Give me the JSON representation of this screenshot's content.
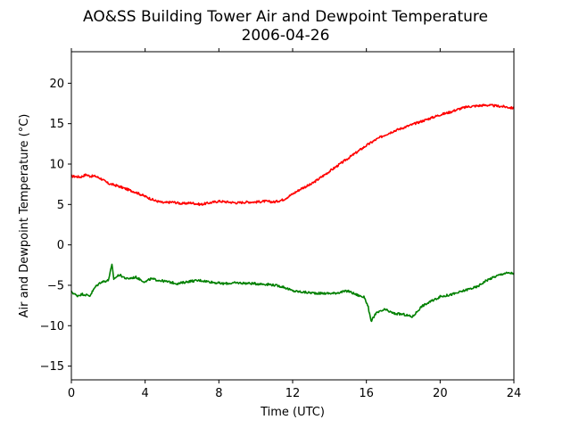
{
  "chart_data": {
    "type": "line",
    "title": "AO&SS Building Tower Air and Dewpoint Temperature",
    "subtitle": "2006-04-26",
    "xlabel": "Time (UTC)",
    "ylabel": "Air and Dewpoint Temperature (°C)",
    "xlim": [
      0,
      24
    ],
    "ylim": [
      -16.7,
      23.9
    ],
    "xticks": [
      0,
      4,
      8,
      12,
      16,
      20,
      24
    ],
    "yticks": [
      -15,
      -10,
      -5,
      0,
      5,
      10,
      15,
      20
    ],
    "grid": false,
    "series": [
      {
        "color": "#ff0000",
        "x": [
          0,
          0.5,
          0.8,
          1.0,
          1.3,
          1.6,
          2.0,
          2.5,
          3.0,
          3.5,
          4.0,
          4.5,
          5.0,
          5.5,
          6.0,
          6.5,
          7.0,
          7.5,
          8.0,
          8.5,
          9.0,
          9.5,
          10.0,
          10.5,
          11.0,
          11.5,
          12.0,
          12.5,
          13.0,
          13.5,
          14.0,
          14.5,
          15.0,
          15.5,
          16.0,
          16.5,
          17.0,
          17.5,
          18.0,
          18.5,
          19.0,
          19.5,
          20.0,
          20.5,
          21.0,
          21.5,
          22.0,
          22.5,
          23.0,
          23.5,
          24.0
        ],
        "values": [
          8.5,
          8.4,
          8.7,
          8.5,
          8.5,
          8.2,
          7.6,
          7.3,
          6.9,
          6.5,
          6.0,
          5.5,
          5.2,
          5.3,
          5.1,
          5.2,
          5.0,
          5.2,
          5.4,
          5.3,
          5.2,
          5.3,
          5.3,
          5.4,
          5.3,
          5.6,
          6.3,
          7.0,
          7.5,
          8.3,
          9.1,
          9.9,
          10.7,
          11.5,
          12.3,
          13.0,
          13.6,
          14.1,
          14.5,
          14.9,
          15.3,
          15.7,
          16.1,
          16.4,
          16.8,
          17.1,
          17.2,
          17.3,
          17.2,
          17.1,
          16.9
        ]
      },
      {
        "color": "#008000",
        "x": [
          0,
          0.3,
          0.6,
          1.0,
          1.3,
          1.6,
          2.0,
          2.2,
          2.3,
          2.6,
          3.0,
          3.5,
          4.0,
          4.3,
          4.8,
          5.3,
          5.8,
          6.4,
          7.0,
          7.6,
          8.2,
          9.0,
          10.0,
          10.8,
          11.5,
          12.0,
          12.8,
          13.5,
          14.2,
          15.0,
          15.5,
          15.9,
          16.1,
          16.25,
          16.5,
          17.0,
          17.5,
          18.0,
          18.5,
          19.0,
          19.5,
          20.0,
          20.5,
          21.0,
          21.5,
          22.0,
          22.5,
          23.0,
          23.5,
          24.0
        ],
        "values": [
          -5.8,
          -6.3,
          -6.1,
          -6.3,
          -5.2,
          -4.6,
          -4.4,
          -2.5,
          -4.2,
          -3.7,
          -4.2,
          -4.0,
          -4.6,
          -4.2,
          -4.4,
          -4.6,
          -4.8,
          -4.5,
          -4.4,
          -4.6,
          -4.8,
          -4.7,
          -4.8,
          -4.9,
          -5.2,
          -5.7,
          -5.9,
          -6.0,
          -6.0,
          -5.7,
          -6.2,
          -6.5,
          -7.7,
          -9.5,
          -8.5,
          -8.0,
          -8.5,
          -8.6,
          -8.9,
          -7.6,
          -7.0,
          -6.4,
          -6.2,
          -5.9,
          -5.5,
          -5.2,
          -4.4,
          -3.9,
          -3.5,
          -3.5
        ]
      }
    ]
  }
}
